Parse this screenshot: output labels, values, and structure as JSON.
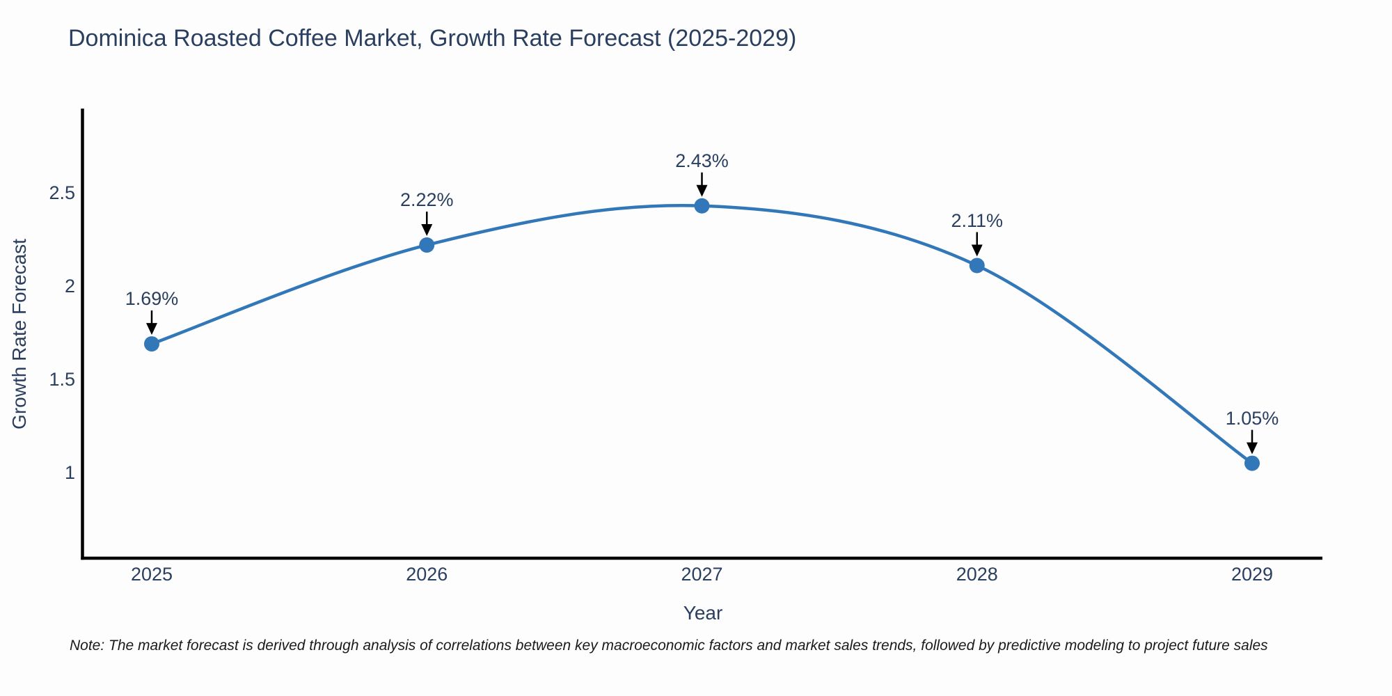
{
  "chart_data": {
    "type": "line",
    "title": "Dominica Roasted Coffee Market, Growth Rate Forecast (2025-2029)",
    "xlabel": "Year",
    "ylabel": "Growth Rate Forecast",
    "x": [
      2025,
      2026,
      2027,
      2028,
      2029
    ],
    "y": [
      1.69,
      2.22,
      2.43,
      2.11,
      1.05
    ],
    "point_labels": [
      "1.69%",
      "2.22%",
      "2.43%",
      "2.11%",
      "1.05%"
    ],
    "xtick_labels": [
      "2025",
      "2026",
      "2027",
      "2028",
      "2029"
    ],
    "ytick_values": [
      1,
      1.5,
      2,
      2.5
    ],
    "ytick_labels": [
      "1",
      "1.5",
      "2",
      "2.5"
    ],
    "xlim": [
      2024.75,
      2029.26
    ],
    "ylim": [
      0.54,
      2.94
    ],
    "line_shape": "spline",
    "grid": false,
    "legend_position": "none",
    "line_color": "#3277b8",
    "marker_color": "#3277b8",
    "axis_color": "#000000",
    "arrow_color": "#000000",
    "note": "Note: The market forecast is derived through analysis of correlations between key macroeconomic factors and market sales trends, followed by predictive modeling to project future sales"
  }
}
